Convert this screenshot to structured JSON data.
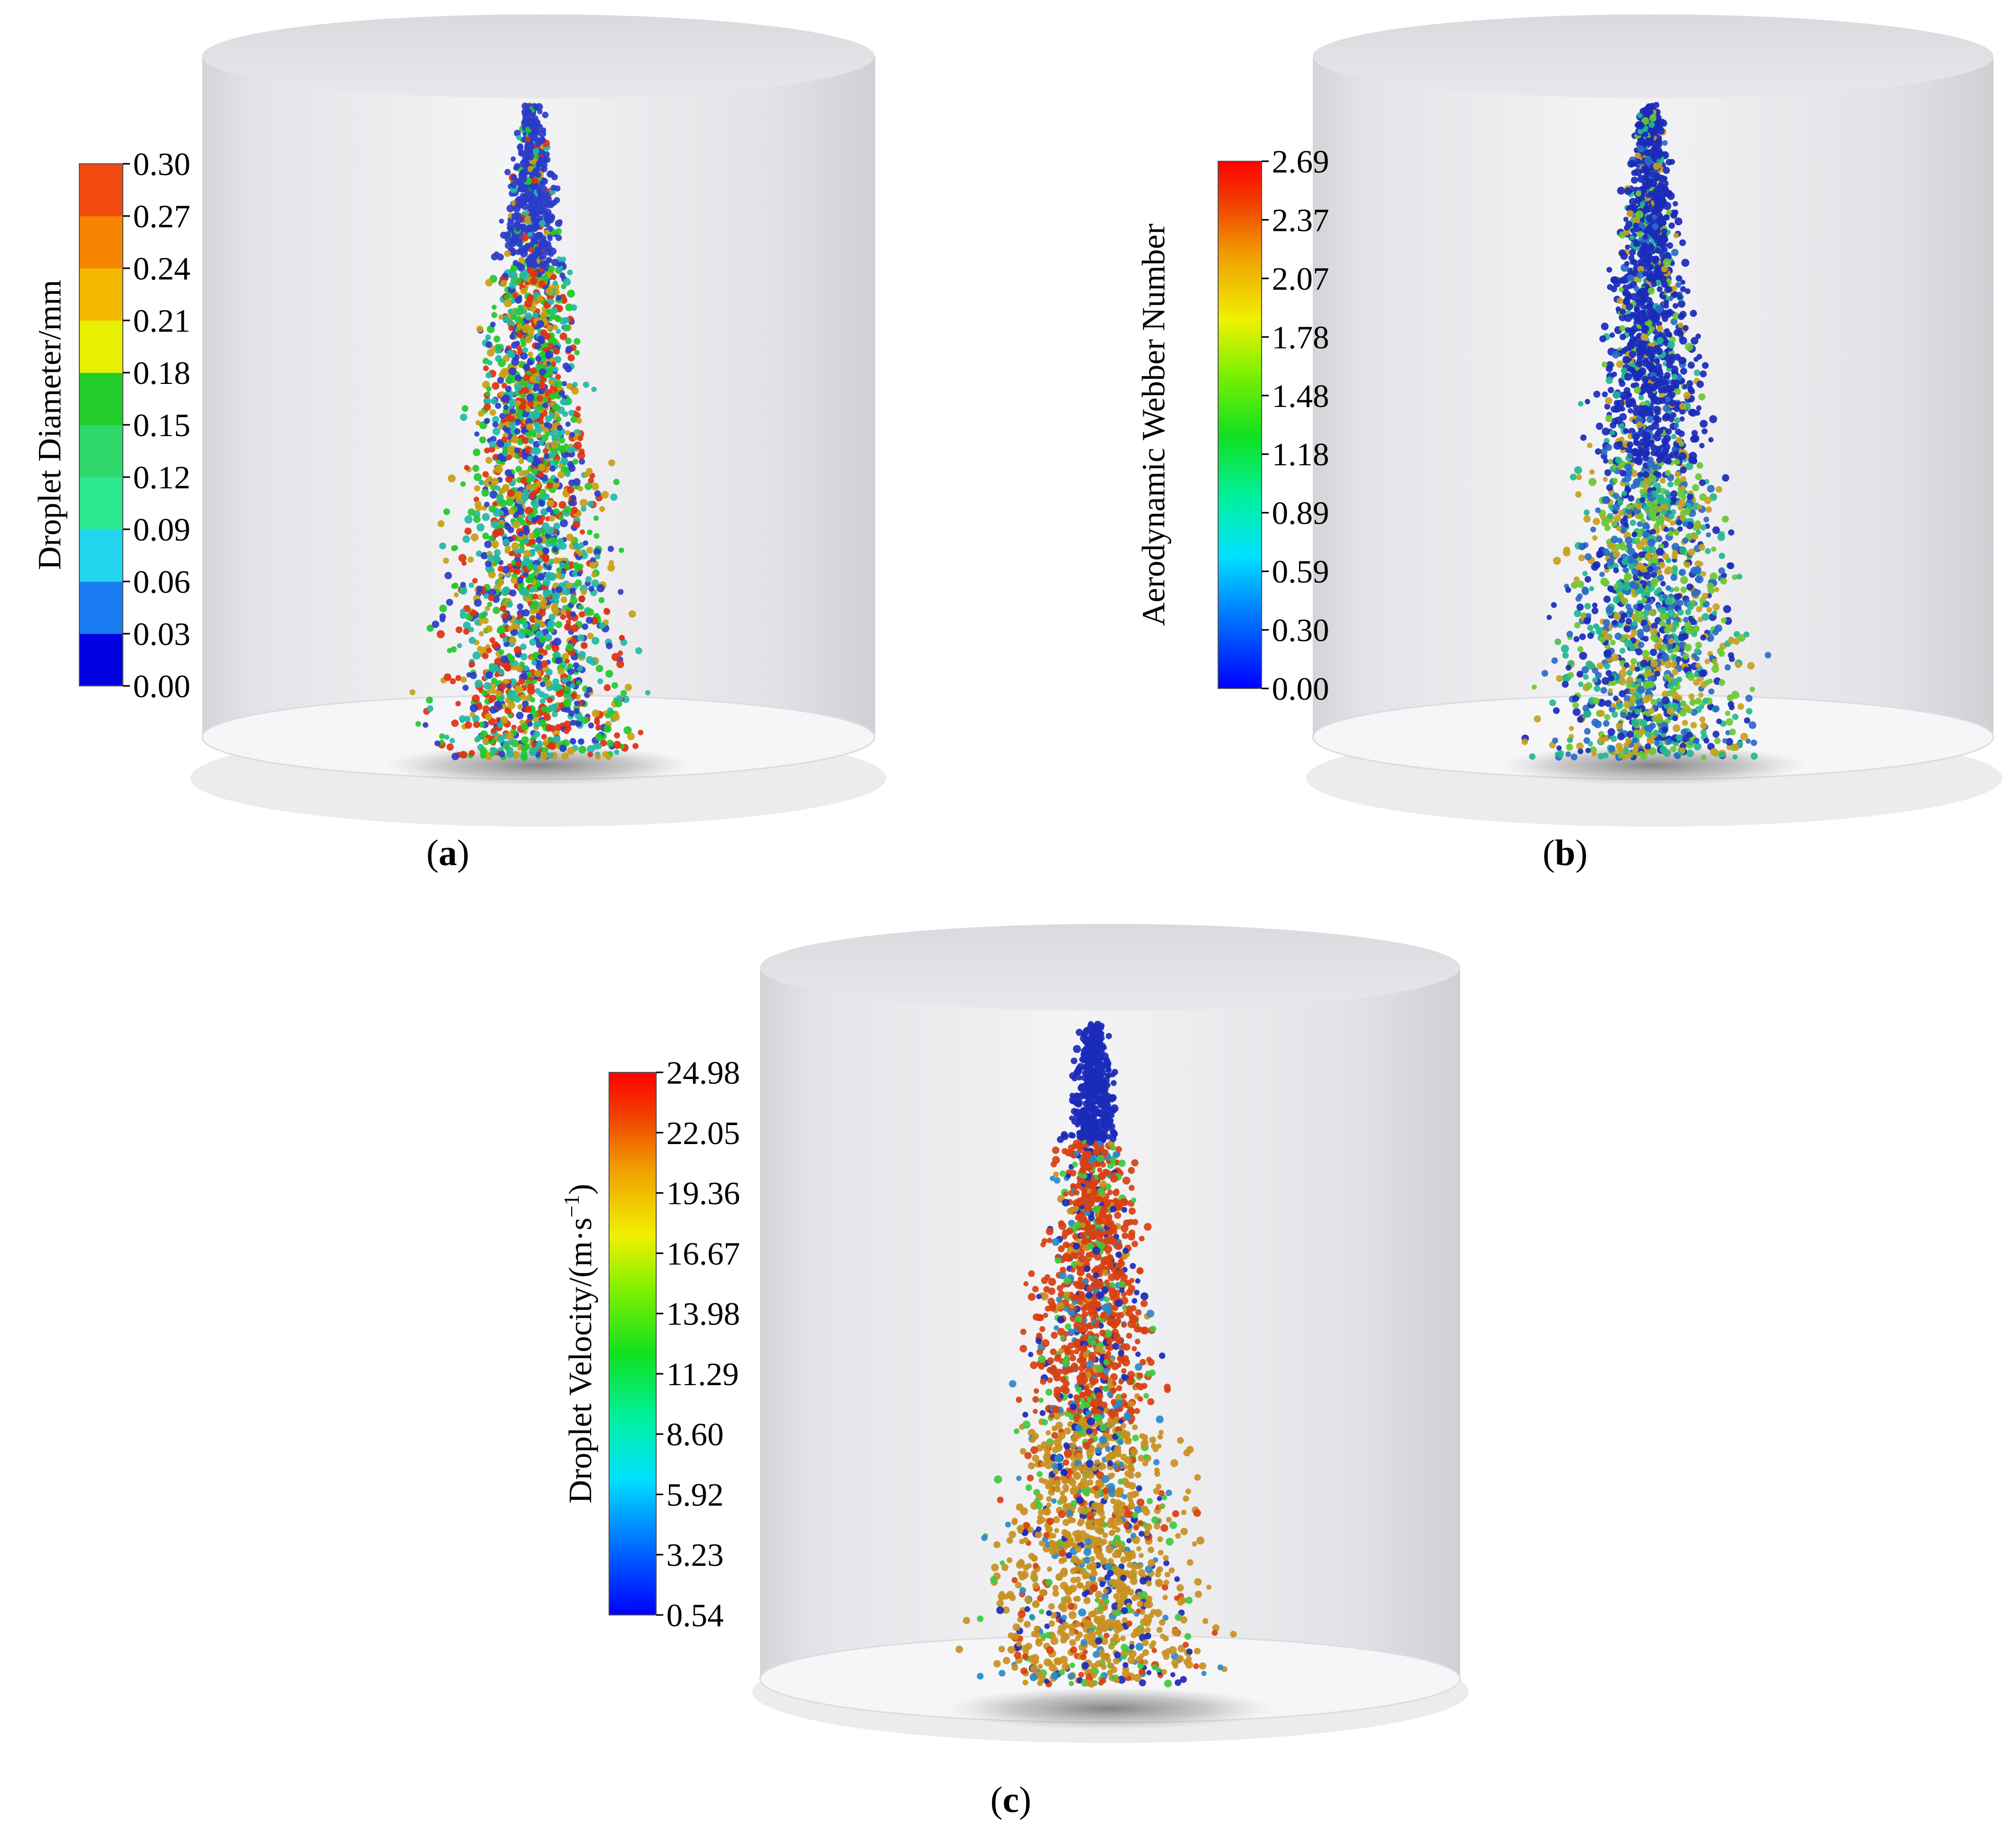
{
  "panels": [
    {
      "id": "a",
      "label": "(a)",
      "label_letter": "a",
      "colorbar": {
        "title": "Droplet Diameter/mm",
        "ticks": [
          "0.00",
          "0.03",
          "0.06",
          "0.09",
          "0.12",
          "0.15",
          "0.18",
          "0.21",
          "0.24",
          "0.27",
          "0.30"
        ],
        "type": "discrete",
        "colors": [
          "#0000e0",
          "#1a7af0",
          "#22d6f0",
          "#2ee890",
          "#2ed86a",
          "#22cc2a",
          "#e6f000",
          "#f5b800",
          "#f58400",
          "#f04a10"
        ]
      },
      "dominant_colors": [
        "#22c82a",
        "#e03010",
        "#2a3cc8",
        "#22b8a8",
        "#c8a010"
      ]
    },
    {
      "id": "b",
      "label": "(b)",
      "label_letter": "b",
      "colorbar": {
        "title": "Aerodynamic Webber Number",
        "ticks": [
          "0.00",
          "0.30",
          "0.59",
          "0.89",
          "1.18",
          "1.48",
          "1.78",
          "2.07",
          "2.37",
          "2.69"
        ],
        "type": "continuous",
        "colors": [
          "#0000ff",
          "#0070ff",
          "#00e0ff",
          "#00f0a0",
          "#10e020",
          "#80f000",
          "#f0f000",
          "#f0a000",
          "#f04000",
          "#ff0000"
        ]
      },
      "dominant_colors": [
        "#1a2ab8",
        "#2a6ac8",
        "#22b890",
        "#6ac830",
        "#c8a020"
      ]
    },
    {
      "id": "c",
      "label": "(c)",
      "label_letter": "c",
      "colorbar": {
        "title": "Droplet Velocity/(m·s⁻¹)",
        "title_parts": [
          "Droplet Velocity/(m·s",
          "−1",
          ")"
        ],
        "ticks": [
          "0.54",
          "3.23",
          "5.92",
          "8.60",
          "11.29",
          "13.98",
          "16.67",
          "19.36",
          "22.05",
          "24.98"
        ],
        "type": "continuous",
        "colors": [
          "#0000ff",
          "#0070ff",
          "#00e0ff",
          "#00f0a0",
          "#10e020",
          "#80f000",
          "#f0f000",
          "#f0a000",
          "#f04000",
          "#ff0000"
        ]
      },
      "dominant_colors": [
        "#c89020",
        "#d84010",
        "#2a8ac8",
        "#40c840",
        "#1a2ab8"
      ]
    }
  ]
}
